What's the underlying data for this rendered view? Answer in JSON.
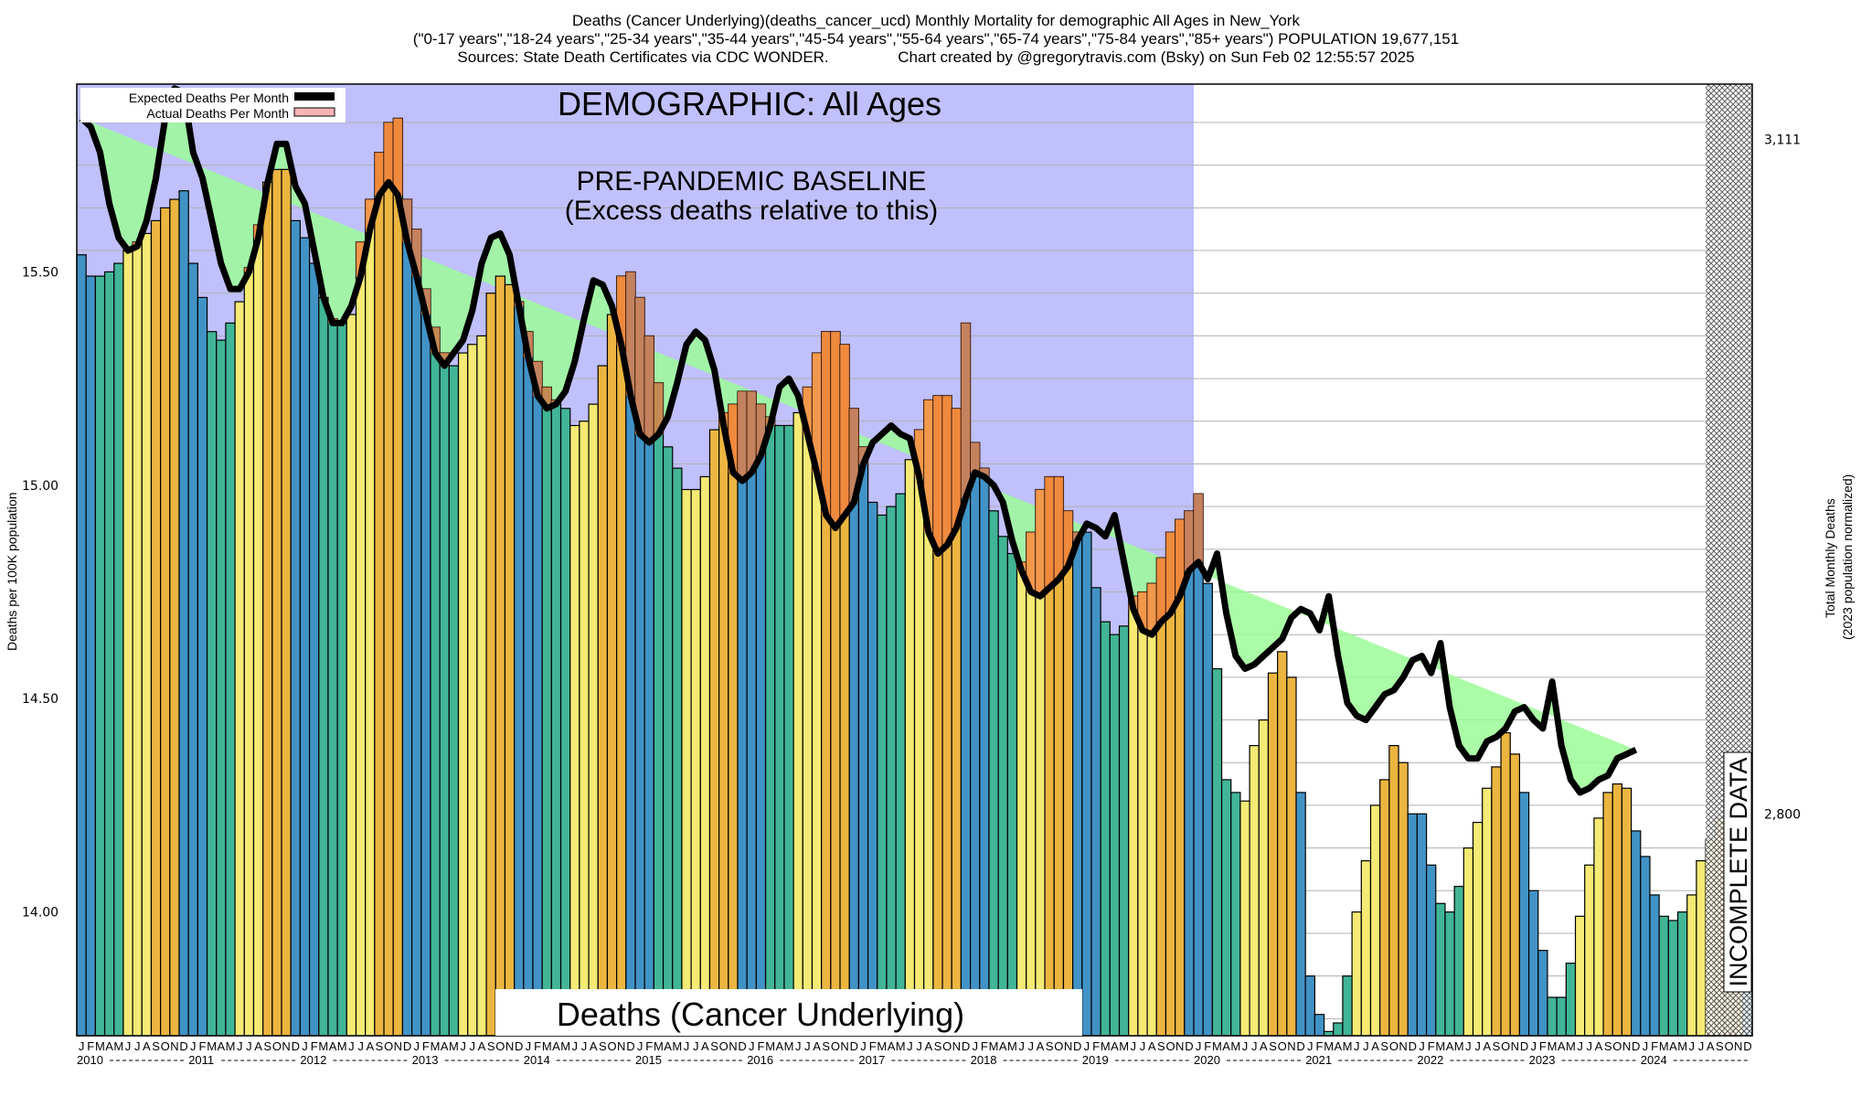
{
  "header": {
    "line1": "Deaths (Cancer Underlying)(deaths_cancer_ucd) Monthly Mortality for demographic All Ages in New_York",
    "line2": "(\"0-17 years\",\"18-24 years\",\"25-34 years\",\"35-44 years\",\"45-54 years\",\"55-64 years\",\"65-74 years\",\"75-84 years\",\"85+ years\") POPULATION 19,677,151",
    "line3": "Sources: State Death Certificates via CDC WONDER.                Chart created by @gregorytravis.com (Bsky) on Sun Feb 02 12:55:57 2025"
  },
  "colors": {
    "baseline_region": "#c0c0fc",
    "excess_positive": "#9cfc98",
    "excess_negative": "#f07c3c",
    "expected_line": "#000000",
    "actual_legend": "#f8b4b4",
    "winter": "#4193c6",
    "spring": "#41b596",
    "summer": "#f4ea74",
    "fall": "#ebb540",
    "grid": "#b0b0b0"
  },
  "chart_data": {
    "type": "bar",
    "title": "Deaths (Cancer Underlying)",
    "demographic_label": "DEMOGRAPHIC: All Ages",
    "baseline_label_1": "PRE-PANDEMIC BASELINE",
    "baseline_label_2": "(Excess deaths relative to this)",
    "incomplete_label": "INCOMPLETE DATA",
    "ylabel": "Deaths per 100K population",
    "ylabel_right_1": "Total Monthly Deaths",
    "ylabel_right_2": "(2023 population normalized)",
    "ylim": [
      13.71,
      15.94
    ],
    "yticks": [
      "15.50",
      "15.00",
      "14.50",
      "14.00"
    ],
    "ytick_values": [
      15.5,
      15.0,
      14.5,
      14.0
    ],
    "right_ticks": [
      "3,111",
      "2,800"
    ],
    "right_tick_values": [
      15.81,
      14.23
    ],
    "grid": true,
    "legend": [
      "Expected Deaths Per Month",
      "Actual Deaths Per Month"
    ],
    "legend_position": "top-left",
    "month_letters": [
      "J",
      "F",
      "M",
      "A",
      "M",
      "J",
      "J",
      "A",
      "S",
      "O",
      "N",
      "D"
    ],
    "years": [
      "2010",
      "2011",
      "2012",
      "2013",
      "2014",
      "2015",
      "2016",
      "2017",
      "2018",
      "2019",
      "2020",
      "2021",
      "2022",
      "2023",
      "2024"
    ],
    "baseline_end_year": "2019",
    "incomplete_from_month_index": 175,
    "actual": [
      15.54,
      15.49,
      15.49,
      15.5,
      15.52,
      15.55,
      15.57,
      15.59,
      15.62,
      15.65,
      15.67,
      15.69,
      15.52,
      15.44,
      15.36,
      15.34,
      15.38,
      15.43,
      15.51,
      15.61,
      15.71,
      15.74,
      15.74,
      15.62,
      15.58,
      15.52,
      15.44,
      15.39,
      15.38,
      15.4,
      15.57,
      15.67,
      15.78,
      15.85,
      15.86,
      15.67,
      15.6,
      15.46,
      15.37,
      15.31,
      15.28,
      15.31,
      15.33,
      15.35,
      15.45,
      15.49,
      15.47,
      15.43,
      15.36,
      15.29,
      15.23,
      15.2,
      15.18,
      15.14,
      15.15,
      15.19,
      15.28,
      15.4,
      15.49,
      15.5,
      15.44,
      15.35,
      15.24,
      15.09,
      15.04,
      14.99,
      14.99,
      15.02,
      15.13,
      15.17,
      15.19,
      15.22,
      15.22,
      15.19,
      15.16,
      15.14,
      15.14,
      15.17,
      15.23,
      15.31,
      15.36,
      15.36,
      15.33,
      15.18,
      15.09,
      14.96,
      14.93,
      14.95,
      14.98,
      15.06,
      15.13,
      15.2,
      15.21,
      15.21,
      15.18,
      15.38,
      15.1,
      15.04,
      14.94,
      14.88,
      14.84,
      14.82,
      14.89,
      14.99,
      15.02,
      15.02,
      14.94,
      14.89,
      14.89,
      14.76,
      14.68,
      14.65,
      14.67,
      14.74,
      14.75,
      14.77,
      14.83,
      14.89,
      14.92,
      14.94,
      14.98,
      14.77,
      14.57,
      14.31,
      14.28,
      14.26,
      14.39,
      14.45,
      14.56,
      14.61,
      14.55,
      14.28,
      13.85,
      13.76,
      13.72,
      13.74,
      13.85,
      14.0,
      14.12,
      14.25,
      14.31,
      14.39,
      14.35,
      14.23,
      14.23,
      14.11,
      14.02,
      14.0,
      14.06,
      14.15,
      14.21,
      14.29,
      14.34,
      14.42,
      14.37,
      14.28,
      14.05,
      13.91,
      13.8,
      13.8,
      13.88,
      13.99,
      14.11,
      14.22,
      14.28,
      14.3,
      14.29,
      14.19,
      14.13,
      14.04,
      13.99,
      13.98,
      14.0,
      14.04,
      14.12,
      14.17,
      14.22,
      14.2,
      14.0,
      13.9
    ],
    "expected": [
      15.86,
      15.84,
      15.78,
      15.66,
      15.58,
      15.55,
      15.56,
      15.62,
      15.72,
      15.86,
      15.93,
      15.92,
      15.78,
      15.72,
      15.62,
      15.52,
      15.46,
      15.46,
      15.5,
      15.58,
      15.71,
      15.8,
      15.8,
      15.7,
      15.66,
      15.55,
      15.44,
      15.38,
      15.38,
      15.42,
      15.49,
      15.6,
      15.68,
      15.71,
      15.68,
      15.57,
      15.49,
      15.4,
      15.31,
      15.28,
      15.31,
      15.34,
      15.41,
      15.52,
      15.58,
      15.59,
      15.54,
      15.42,
      15.3,
      15.21,
      15.18,
      15.19,
      15.22,
      15.29,
      15.39,
      15.48,
      15.47,
      15.42,
      15.33,
      15.21,
      15.12,
      15.1,
      15.12,
      15.16,
      15.24,
      15.33,
      15.36,
      15.34,
      15.27,
      15.14,
      15.03,
      15.01,
      15.03,
      15.07,
      15.14,
      15.23,
      15.25,
      15.21,
      15.12,
      15.03,
      14.93,
      14.9,
      14.93,
      14.96,
      15.05,
      15.1,
      15.12,
      15.14,
      15.12,
      15.11,
      15.02,
      14.89,
      14.84,
      14.86,
      14.9,
      14.97,
      15.03,
      15.02,
      15.0,
      14.96,
      14.87,
      14.8,
      14.75,
      14.74,
      14.76,
      14.78,
      14.81,
      14.87,
      14.91,
      14.9,
      14.88,
      14.93,
      14.82,
      14.71,
      14.66,
      14.65,
      14.68,
      14.7,
      14.74,
      14.8,
      14.82,
      14.78,
      14.84,
      14.7,
      14.6,
      14.57,
      14.58,
      14.6,
      14.62,
      14.64,
      14.69,
      14.71,
      14.7,
      14.66,
      14.74,
      14.6,
      14.49,
      14.46,
      14.45,
      14.48,
      14.51,
      14.52,
      14.55,
      14.59,
      14.6,
      14.56,
      14.63,
      14.48,
      14.39,
      14.36,
      14.36,
      14.4,
      14.41,
      14.43,
      14.47,
      14.48,
      14.45,
      14.43,
      14.54,
      14.39,
      14.31,
      14.28,
      14.29,
      14.31,
      14.32,
      14.36,
      14.37,
      14.38
    ]
  }
}
